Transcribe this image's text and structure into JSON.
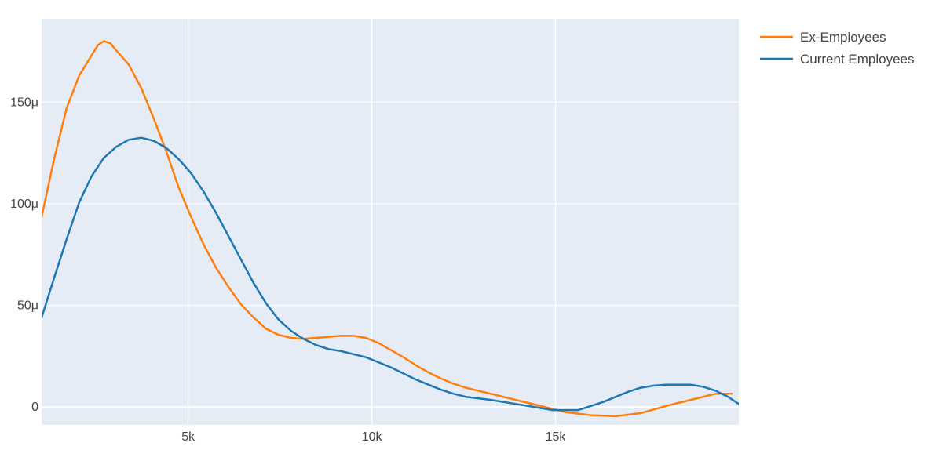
{
  "chart_data": {
    "type": "line",
    "xlim": [
      1010,
      19990
    ],
    "ylim": [
      -8.8e-06,
      0.000191
    ],
    "x_ticks": [
      {
        "value": 5000,
        "label": "5k"
      },
      {
        "value": 10000,
        "label": "10k"
      },
      {
        "value": 15000,
        "label": "15k"
      }
    ],
    "y_ticks": [
      {
        "value": 0,
        "label": "0"
      },
      {
        "value": 5e-05,
        "label": "50μ"
      },
      {
        "value": 0.0001,
        "label": "100μ"
      },
      {
        "value": 0.00015,
        "label": "150μ"
      }
    ],
    "grid": true,
    "legend_position": "top-right",
    "series": [
      {
        "name": "Ex-Employees",
        "color": "#ff7f0e",
        "x": [
          1010,
          1350,
          1690,
          2030,
          2370,
          2540,
          2700,
          2880,
          3040,
          3380,
          3720,
          4060,
          4400,
          4740,
          5080,
          5420,
          5760,
          6100,
          6440,
          6780,
          7120,
          7460,
          7800,
          8140,
          8480,
          8820,
          9160,
          9500,
          9840,
          10180,
          10520,
          10860,
          11200,
          11540,
          11880,
          12220,
          12560,
          13240,
          13920,
          14600,
          15280,
          15960,
          16640,
          17320,
          18000,
          18680,
          19360,
          19800
        ],
        "y": [
          9.35e-05,
          0.000122,
          0.000147,
          0.000163,
          0.000173,
          0.000178,
          0.00018,
          0.000179,
          0.0001755,
          0.0001685,
          0.000157,
          0.000142,
          0.000126,
          0.000108,
          9.35e-05,
          8e-05,
          6.85e-05,
          5.9e-05,
          5.05e-05,
          4.4e-05,
          3.85e-05,
          3.55e-05,
          3.4e-05,
          3.35e-05,
          3.4e-05,
          3.45e-05,
          3.5e-05,
          3.5e-05,
          3.4e-05,
          3.15e-05,
          2.8e-05,
          2.45e-05,
          2.05e-05,
          1.7e-05,
          1.4e-05,
          1.15e-05,
          9.5e-06,
          6.5e-06,
          3.5e-06,
          5e-07,
          -2.5e-06,
          -4e-06,
          -4.5e-06,
          -3e-06,
          5e-07,
          3.5e-06,
          6.5e-06,
          6.5e-06
        ]
      },
      {
        "name": "Current Employees",
        "color": "#1f77b4",
        "x": [
          1010,
          1350,
          1690,
          2030,
          2370,
          2700,
          3040,
          3380,
          3720,
          4060,
          4400,
          4740,
          5080,
          5420,
          5760,
          6100,
          6440,
          6780,
          7120,
          7460,
          7800,
          8140,
          8480,
          8820,
          9160,
          9500,
          9840,
          10180,
          10520,
          10860,
          11200,
          11540,
          11880,
          12220,
          12560,
          13240,
          13920,
          14600,
          14920,
          15280,
          15620,
          15960,
          16300,
          16640,
          16980,
          17320,
          17660,
          18000,
          18340,
          18680,
          19020,
          19360,
          19700,
          19990
        ],
        "y": [
          4.4e-05,
          6.35e-05,
          8.25e-05,
          0.0001005,
          0.0001135,
          0.0001225,
          0.000128,
          0.0001315,
          0.0001325,
          0.000131,
          0.0001275,
          0.000122,
          0.000115,
          0.000106,
          9.55e-05,
          8.4e-05,
          7.25e-05,
          6.1e-05,
          5.1e-05,
          4.3e-05,
          3.75e-05,
          3.35e-05,
          3.05e-05,
          2.85e-05,
          2.75e-05,
          2.6e-05,
          2.45e-05,
          2.2e-05,
          1.95e-05,
          1.65e-05,
          1.35e-05,
          1.1e-05,
          8.5e-06,
          6.5e-06,
          5e-06,
          3.5e-06,
          1.5e-06,
          -5e-07,
          -1.5e-06,
          -1.5e-06,
          -1.5e-06,
          5e-07,
          2.5e-06,
          5e-06,
          7.5e-06,
          9.5e-06,
          1.05e-05,
          1.1e-05,
          1.1e-05,
          1.1e-05,
          1e-05,
          8e-06,
          5e-06,
          1.5e-06
        ]
      }
    ]
  }
}
